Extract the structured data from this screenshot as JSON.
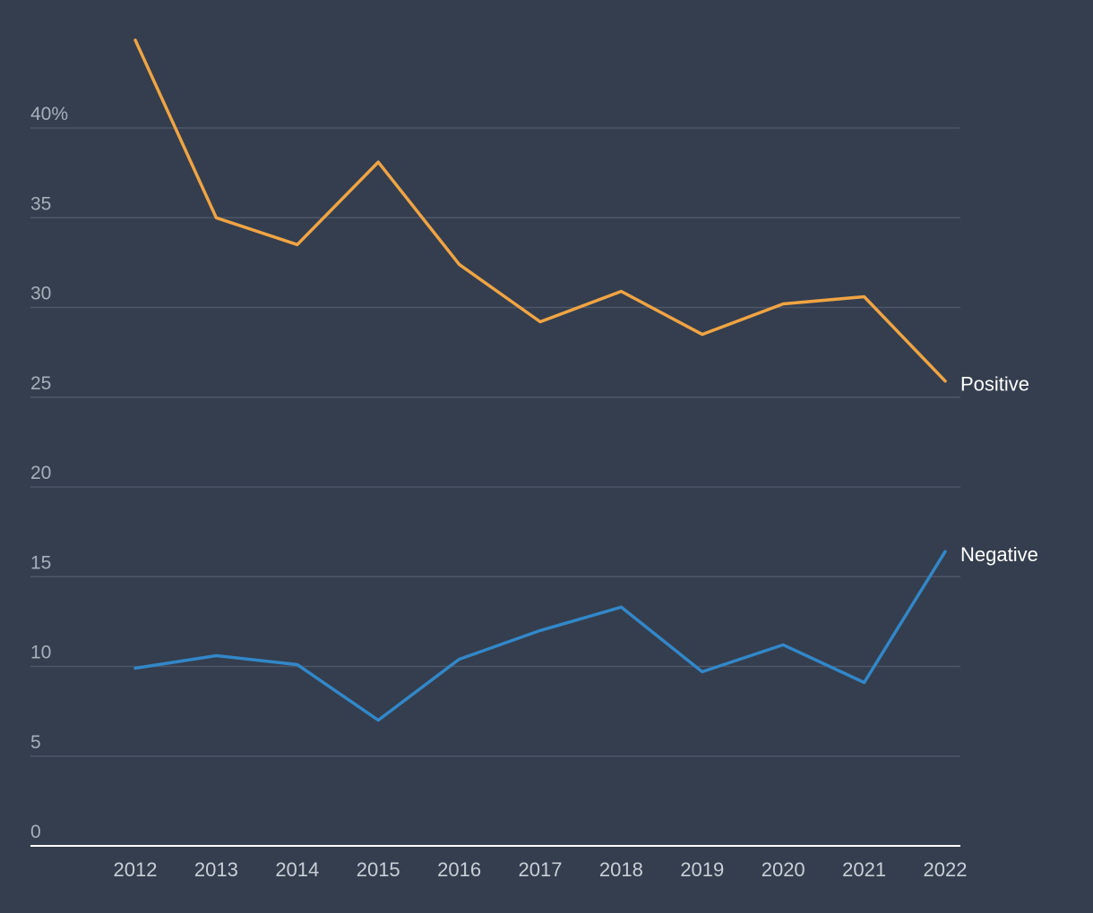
{
  "chart_data": {
    "type": "line",
    "title": "",
    "xlabel": "",
    "ylabel": "",
    "x": [
      "2012",
      "2013",
      "2014",
      "2015",
      "2016",
      "2017",
      "2018",
      "2019",
      "2020",
      "2021",
      "2022"
    ],
    "ylim": [
      0,
      45
    ],
    "y_ticks": [
      0,
      5,
      10,
      15,
      20,
      25,
      30,
      35,
      40
    ],
    "y_tick_labels": [
      "0",
      "5",
      "10",
      "15",
      "20",
      "25",
      "30",
      "35",
      "40%"
    ],
    "grid": true,
    "legend": "direct-labels-right",
    "series": [
      {
        "name": "Positive",
        "color": "#f0a443",
        "values": [
          44.9,
          35.0,
          33.5,
          38.1,
          32.4,
          29.2,
          30.9,
          28.5,
          30.2,
          30.6,
          25.9
        ]
      },
      {
        "name": "Negative",
        "color": "#3287c8",
        "values": [
          9.9,
          10.6,
          10.1,
          7.0,
          10.4,
          12.0,
          13.3,
          9.7,
          11.2,
          9.1,
          16.4
        ]
      }
    ]
  }
}
